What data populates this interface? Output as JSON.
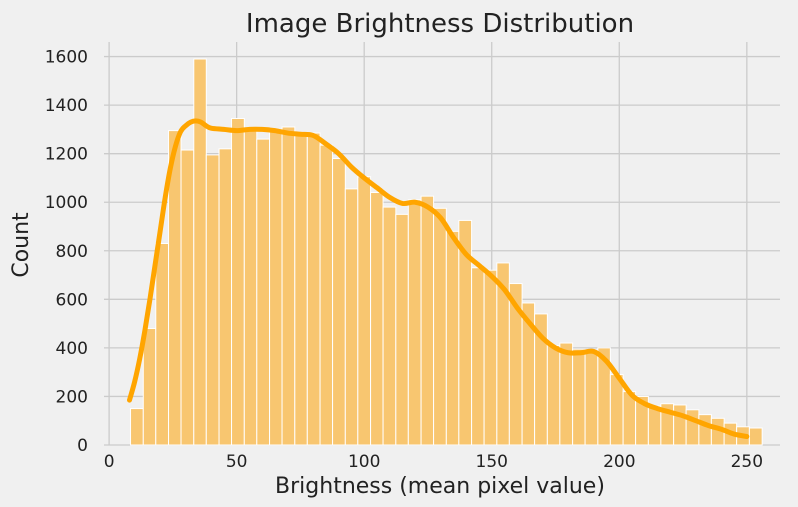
{
  "chart_data": {
    "type": "bar",
    "title": "Image Brightness Distribution",
    "xlabel": "Brightness (mean pixel value)",
    "ylabel": "Count",
    "xlim": [
      -2,
      263
    ],
    "ylim": [
      0,
      1660
    ],
    "xticks": [
      0,
      50,
      100,
      150,
      200,
      250
    ],
    "yticks": [
      0,
      200,
      400,
      600,
      800,
      1000,
      1200,
      1400,
      1600
    ],
    "grid": true,
    "colors": {
      "background": "#f0f0f0",
      "bar_fill": "#f8c670",
      "bar_edge": "#ffffff",
      "kde_line": "#ffa500",
      "grid": "#cbcbcb"
    },
    "bin_edges": [
      8.4,
      13.4,
      18.3,
      23.3,
      28.2,
      33.2,
      38.1,
      43.1,
      48.0,
      53.0,
      57.9,
      62.9,
      67.8,
      72.8,
      77.7,
      82.7,
      87.6,
      92.6,
      97.5,
      102.5,
      107.4,
      112.4,
      117.3,
      122.3,
      127.2,
      132.2,
      137.1,
      142.1,
      147.0,
      152.0,
      156.9,
      161.9,
      166.8,
      171.8,
      176.7,
      181.7,
      186.6,
      191.6,
      196.5,
      201.5,
      206.4,
      211.4,
      216.3,
      221.3,
      226.2,
      231.2,
      236.1,
      241.1,
      246.0,
      251.0
    ],
    "counts": [
      150,
      480,
      830,
      1295,
      1215,
      1590,
      1195,
      1220,
      1345,
      1300,
      1260,
      1290,
      1310,
      1275,
      1285,
      1235,
      1180,
      1055,
      1105,
      1040,
      980,
      950,
      1010,
      1025,
      975,
      880,
      925,
      730,
      720,
      750,
      665,
      585,
      540,
      410,
      420,
      395,
      385,
      400,
      290,
      220,
      200,
      160,
      170,
      165,
      145,
      125,
      110,
      90,
      75,
      70
    ],
    "kde": {
      "x": [
        8,
        10,
        12,
        14,
        16,
        18,
        20,
        22,
        24,
        26,
        28,
        30,
        32,
        34,
        36,
        38,
        40,
        45,
        50,
        55,
        60,
        65,
        70,
        75,
        80,
        85,
        90,
        95,
        100,
        105,
        110,
        115,
        120,
        125,
        130,
        135,
        140,
        145,
        150,
        155,
        160,
        165,
        170,
        175,
        180,
        185,
        190,
        195,
        200,
        205,
        210,
        215,
        220,
        225,
        230,
        235,
        240,
        245,
        250
      ],
      "y": [
        185,
        260,
        355,
        470,
        600,
        740,
        880,
        1020,
        1140,
        1230,
        1290,
        1315,
        1330,
        1335,
        1330,
        1315,
        1305,
        1300,
        1295,
        1300,
        1300,
        1295,
        1285,
        1280,
        1275,
        1240,
        1200,
        1145,
        1100,
        1060,
        1020,
        995,
        1000,
        980,
        935,
        855,
        785,
        740,
        695,
        640,
        565,
        500,
        440,
        400,
        380,
        380,
        385,
        345,
        275,
        205,
        170,
        150,
        135,
        120,
        100,
        80,
        65,
        45,
        35
      ]
    }
  }
}
